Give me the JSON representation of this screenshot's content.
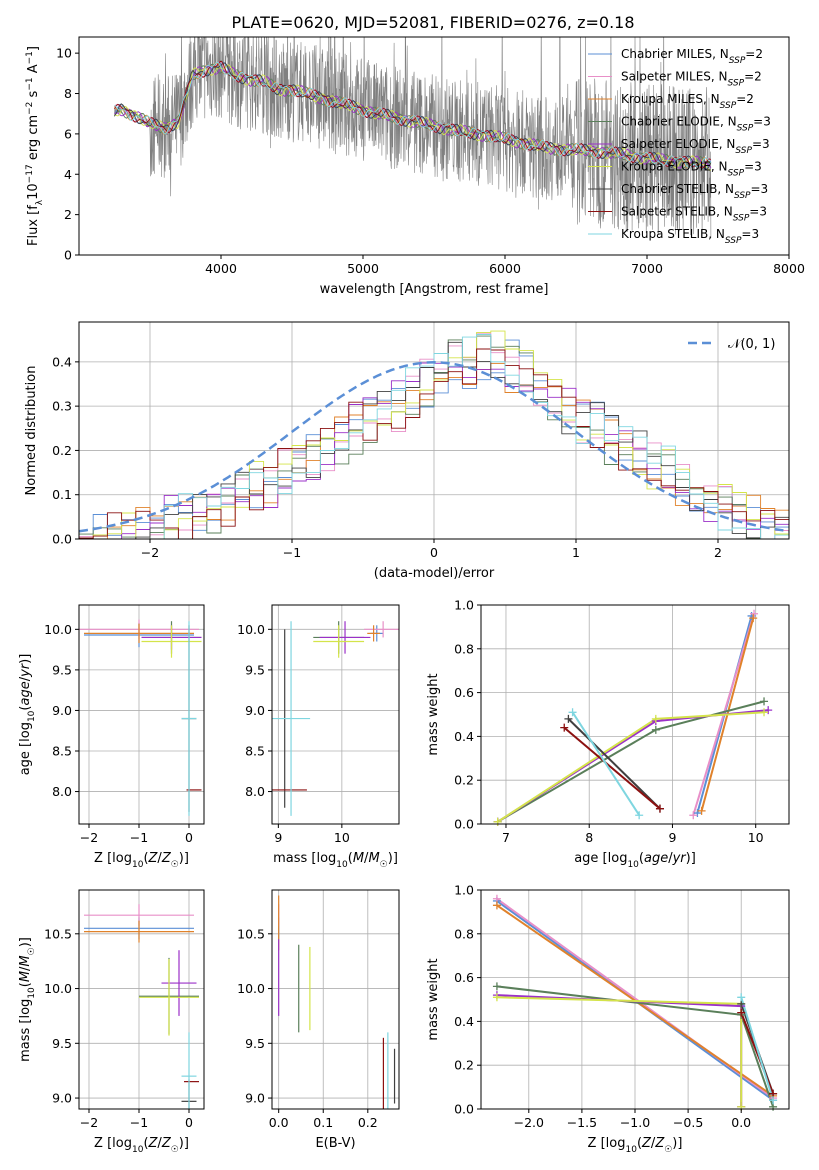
{
  "title": "PLATE=0620, MJD=52081, FIBERID=0276, z=0.18",
  "colors": {
    "Chabrier MILES": "#5b8fd6",
    "Salpeter MILES": "#e88fc8",
    "Kroupa MILES": "#e0822b",
    "Chabrier ELODIE": "#5a7f5a",
    "Salpeter ELODIE": "#9b30c8",
    "Kroupa ELODIE": "#d4e44a",
    "Chabrier STELIB": "#404040",
    "Salpeter STELIB": "#8b1010",
    "Kroupa STELIB": "#7fd6e0",
    "data": "#808080",
    "normal": "#5b8fd6"
  },
  "chart_data": [
    {
      "id": "spectrum",
      "type": "line",
      "title": "PLATE=0620, MJD=52081, FIBERID=0276, z=0.18",
      "xlabel": "wavelength [Angstrom, rest frame]",
      "ylabel": "Flux [fλ10⁻¹⁷ erg cm⁻² s⁻¹ A⁻¹]",
      "xlim": [
        3000,
        8000
      ],
      "ylim": [
        0,
        10.8
      ],
      "xticks": [
        4000,
        5000,
        6000,
        7000,
        8000
      ],
      "yticks": [
        0,
        2,
        4,
        6,
        8,
        10
      ],
      "grid": false,
      "legend_position": "top-right",
      "legend": [
        {
          "name": "Chabrier MILES",
          "sub": "SSP",
          "n": "2"
        },
        {
          "name": "Salpeter MILES",
          "sub": "SSP",
          "n": "2"
        },
        {
          "name": "Kroupa MILES",
          "sub": "SSP",
          "n": "2"
        },
        {
          "name": "Chabrier ELODIE",
          "sub": "SSP",
          "n": "3"
        },
        {
          "name": "Salpeter ELODIE",
          "sub": "SSP",
          "n": "3"
        },
        {
          "name": "Kroupa ELODIE",
          "sub": "SSP",
          "n": "3"
        },
        {
          "name": "Chabrier STELIB",
          "sub": "SSP",
          "n": "3"
        },
        {
          "name": "Salpeter STELIB",
          "sub": "SSP",
          "n": "3"
        },
        {
          "name": "Kroupa STELIB",
          "sub": "SSP",
          "n": "3"
        }
      ],
      "continuum": {
        "x": [
          3250,
          3300,
          3400,
          3500,
          3600,
          3700,
          3800,
          3900,
          4000,
          4100,
          4200,
          4300,
          4400,
          4500,
          4700,
          4900,
          5100,
          5300,
          5500,
          5700,
          5900,
          6100,
          6300,
          6500,
          6700,
          6900,
          7100,
          7300,
          7450
        ],
        "y": [
          7.1,
          7.2,
          6.9,
          6.5,
          6.3,
          6.6,
          8.9,
          9.2,
          9.3,
          8.9,
          8.7,
          8.6,
          8.2,
          8.2,
          7.8,
          7.4,
          7.0,
          6.7,
          6.4,
          6.1,
          5.9,
          5.6,
          5.3,
          5.2,
          5.1,
          4.9,
          4.7,
          4.6,
          4.5
        ]
      },
      "noisy_range": [
        3500,
        7500
      ]
    },
    {
      "id": "residuals",
      "type": "histogram",
      "xlabel": "(data-model)/error",
      "ylabel": "Normed distribution",
      "xlim": [
        -2.5,
        2.5
      ],
      "ylim": [
        0,
        0.49
      ],
      "xticks": [
        -2,
        -1,
        0,
        1,
        2
      ],
      "yticks": [
        0,
        0.1,
        0.2,
        0.3,
        0.4
      ],
      "grid": true,
      "legend_position": "top-right",
      "reference_curve": "𝒩(0, 1)",
      "bin_width": 0.1,
      "bin_start": -2.5,
      "values": [
        0.025,
        0.03,
        0.035,
        0.04,
        0.045,
        0.05,
        0.07,
        0.08,
        0.09,
        0.1,
        0.11,
        0.13,
        0.15,
        0.16,
        0.18,
        0.2,
        0.21,
        0.23,
        0.25,
        0.28,
        0.3,
        0.31,
        0.33,
        0.36,
        0.38,
        0.4,
        0.42,
        0.43,
        0.44,
        0.44,
        0.42,
        0.4,
        0.37,
        0.35,
        0.32,
        0.3,
        0.28,
        0.25,
        0.24,
        0.22,
        0.2,
        0.18,
        0.16,
        0.14,
        0.12,
        0.1,
        0.09,
        0.07,
        0.06,
        0.05
      ]
    },
    {
      "id": "z-age",
      "type": "errorbar",
      "xlabel": "Z [log10(Z/Z☉)]",
      "ylabel": "age  [log10(age/yr)]",
      "xlim": [
        -2.2,
        0.3
      ],
      "ylim": [
        7.6,
        10.3
      ],
      "xticks": [
        -2,
        -1,
        0
      ],
      "yticks": [
        8.0,
        8.5,
        9.0,
        9.5,
        10.0
      ],
      "grid": true,
      "points": [
        {
          "model": "Chabrier MILES",
          "x": -1.0,
          "xerr": 1.1,
          "y": 9.93,
          "yerr": 0.15
        },
        {
          "model": "Salpeter MILES",
          "x": -1.0,
          "xerr": 1.2,
          "y": 10.0,
          "yerr": 0.12
        },
        {
          "model": "Kroupa MILES",
          "x": -1.0,
          "xerr": 1.1,
          "y": 9.95,
          "yerr": 0.12
        },
        {
          "model": "Chabrier ELODIE",
          "x": -0.35,
          "xerr": 0.6,
          "y": 9.9,
          "yerr": 0.2
        },
        {
          "model": "Salpeter ELODIE",
          "x": -0.35,
          "xerr": 0.6,
          "y": 9.9,
          "yerr": 0.15
        },
        {
          "model": "Kroupa ELODIE",
          "x": -0.35,
          "xerr": 0.6,
          "y": 9.85,
          "yerr": 0.2
        },
        {
          "model": "Chabrier STELIB",
          "x": 0.0,
          "xerr": 0.15,
          "y": 8.9,
          "yerr": 1.15
        },
        {
          "model": "Salpeter STELIB",
          "x": 0.1,
          "xerr": 0.15,
          "y": 8.02,
          "yerr": 0.0
        },
        {
          "model": "Kroupa STELIB",
          "x": 0.0,
          "xerr": 0.15,
          "y": 8.9,
          "yerr": 1.2
        }
      ]
    },
    {
      "id": "mass-age",
      "type": "errorbar",
      "xlabel": "mass [log10(M/M☉)]",
      "ylabel": "",
      "xlim": [
        8.9,
        10.9
      ],
      "ylim": [
        7.6,
        10.3
      ],
      "xticks": [
        9,
        10
      ],
      "yticks": [
        8.0,
        8.5,
        9.0,
        9.5,
        10.0
      ],
      "grid": true,
      "points": [
        {
          "model": "Chabrier MILES",
          "x": 10.55,
          "xerr": 0.1,
          "y": 9.95,
          "yerr": 0.1
        },
        {
          "model": "Salpeter MILES",
          "x": 10.65,
          "xerr": 0.3,
          "y": 10.0,
          "yerr": 0.1
        },
        {
          "model": "Kroupa MILES",
          "x": 10.5,
          "xerr": 0.1,
          "y": 9.95,
          "yerr": 0.1
        },
        {
          "model": "Chabrier ELODIE",
          "x": 9.95,
          "xerr": 0.4,
          "y": 9.9,
          "yerr": 0.2
        },
        {
          "model": "Salpeter ELODIE",
          "x": 10.05,
          "xerr": 0.4,
          "y": 9.9,
          "yerr": 0.2
        },
        {
          "model": "Kroupa ELODIE",
          "x": 9.95,
          "xerr": 0.4,
          "y": 9.85,
          "yerr": 0.2
        },
        {
          "model": "Chabrier STELIB",
          "x": 9.1,
          "xerr": 0.0,
          "y": 8.9,
          "yerr": 1.1
        },
        {
          "model": "Salpeter STELIB",
          "x": 9.15,
          "xerr": 0.3,
          "y": 8.02,
          "yerr": 0.0
        },
        {
          "model": "Kroupa STELIB",
          "x": 9.2,
          "xerr": 0.3,
          "y": 8.9,
          "yerr": 1.2
        }
      ]
    },
    {
      "id": "age-weight",
      "type": "line",
      "xlabel": "age  [log10(age/yr)]",
      "ylabel": "mass weight",
      "xlim": [
        6.7,
        10.4
      ],
      "ylim": [
        0,
        1.0
      ],
      "xticks": [
        7,
        8,
        9,
        10
      ],
      "yticks": [
        0.0,
        0.2,
        0.4,
        0.6,
        0.8,
        1.0
      ],
      "grid": true,
      "series": [
        {
          "model": "Chabrier MILES",
          "x": [
            9.3,
            9.95
          ],
          "y": [
            0.05,
            0.95
          ]
        },
        {
          "model": "Salpeter MILES",
          "x": [
            9.25,
            9.98
          ],
          "y": [
            0.04,
            0.96
          ]
        },
        {
          "model": "Kroupa MILES",
          "x": [
            9.35,
            9.97
          ],
          "y": [
            0.06,
            0.94
          ]
        },
        {
          "model": "Chabrier ELODIE",
          "x": [
            6.9,
            8.8,
            10.1
          ],
          "y": [
            0.01,
            0.43,
            0.56
          ]
        },
        {
          "model": "Salpeter ELODIE",
          "x": [
            6.9,
            8.8,
            10.15
          ],
          "y": [
            0.01,
            0.47,
            0.52
          ]
        },
        {
          "model": "Kroupa ELODIE",
          "x": [
            6.9,
            8.8,
            10.1
          ],
          "y": [
            0.01,
            0.48,
            0.51
          ]
        },
        {
          "model": "Chabrier STELIB",
          "x": [
            7.75,
            8.85
          ],
          "y": [
            0.48,
            0.07
          ]
        },
        {
          "model": "Salpeter STELIB",
          "x": [
            7.7,
            8.85
          ],
          "y": [
            0.44,
            0.07
          ]
        },
        {
          "model": "Kroupa STELIB",
          "x": [
            7.8,
            8.6
          ],
          "y": [
            0.51,
            0.04
          ]
        }
      ]
    },
    {
      "id": "z-mass",
      "type": "errorbar",
      "xlabel": "Z [log10(Z/Z☉)]",
      "ylabel": "mass [log10(M/M☉)]",
      "xlim": [
        -2.2,
        0.3
      ],
      "ylim": [
        8.9,
        10.9
      ],
      "xticks": [
        -2,
        -1,
        0
      ],
      "yticks": [
        9.0,
        9.5,
        10.0,
        10.5
      ],
      "grid": true,
      "points": [
        {
          "model": "Chabrier MILES",
          "x": -1.0,
          "xerr": 1.1,
          "y": 10.55,
          "yerr": 0.1
        },
        {
          "model": "Salpeter MILES",
          "x": -1.0,
          "xerr": 1.1,
          "y": 10.67,
          "yerr": 0.1
        },
        {
          "model": "Kroupa MILES",
          "x": -1.0,
          "xerr": 1.1,
          "y": 10.52,
          "yerr": 0.1
        },
        {
          "model": "Chabrier ELODIE",
          "x": -0.4,
          "xerr": 0.6,
          "y": 9.93,
          "yerr": 0.35
        },
        {
          "model": "Salpeter ELODIE",
          "x": -0.2,
          "xerr": 0.35,
          "y": 10.05,
          "yerr": 0.3
        },
        {
          "model": "Kroupa ELODIE",
          "x": -0.4,
          "xerr": 0.6,
          "y": 9.92,
          "yerr": 0.35
        },
        {
          "model": "Chabrier STELIB",
          "x": 0.0,
          "xerr": 0.15,
          "y": 8.97,
          "yerr": 0.2
        },
        {
          "model": "Salpeter STELIB",
          "x": 0.05,
          "xerr": 0.15,
          "y": 9.15,
          "yerr": 0.0
        },
        {
          "model": "Kroupa STELIB",
          "x": 0.0,
          "xerr": 0.15,
          "y": 9.2,
          "yerr": 0.4
        }
      ]
    },
    {
      "id": "ebv-mass",
      "type": "errorbar",
      "xlabel": "E(B-V)",
      "ylabel": "",
      "xlim": [
        -0.015,
        0.27
      ],
      "ylim": [
        8.9,
        10.9
      ],
      "xticks": [
        0.0,
        0.1,
        0.2
      ],
      "xticklabels": [
        "0.0",
        "0.1",
        "0.2"
      ],
      "yticks": [
        9.0,
        9.5,
        10.0,
        10.5
      ],
      "grid": true,
      "points": [
        {
          "model": "Chabrier MILES",
          "x": 0.0,
          "xerr": 0,
          "y": 10.55,
          "yerr": 0.1
        },
        {
          "model": "Salpeter MILES",
          "x": 0.0,
          "xerr": 0,
          "y": 10.67,
          "yerr": 0.1
        },
        {
          "model": "Kroupa MILES",
          "x": 0.0,
          "xerr": 0,
          "y": 10.6,
          "yerr": 0.25
        },
        {
          "model": "Chabrier ELODIE",
          "x": 0.045,
          "xerr": 0,
          "y": 10.0,
          "yerr": 0.4
        },
        {
          "model": "Salpeter ELODIE",
          "x": 0.0,
          "xerr": 0,
          "y": 10.1,
          "yerr": 0.35
        },
        {
          "model": "Kroupa ELODIE",
          "x": 0.07,
          "xerr": 0,
          "y": 10.0,
          "yerr": 0.38
        },
        {
          "model": "Chabrier STELIB",
          "x": 0.26,
          "xerr": 0,
          "y": 9.2,
          "yerr": 0.25
        },
        {
          "model": "Salpeter STELIB",
          "x": 0.235,
          "xerr": 0,
          "y": 9.2,
          "yerr": 0.35
        },
        {
          "model": "Kroupa STELIB",
          "x": 0.245,
          "xerr": 0,
          "y": 9.2,
          "yerr": 0.4
        }
      ]
    },
    {
      "id": "z-weight",
      "type": "line",
      "xlabel": "Z [log10(Z/Z☉)]",
      "ylabel": "mass weight",
      "xlim": [
        -2.45,
        0.45
      ],
      "ylim": [
        0,
        1.0
      ],
      "xticks": [
        -2.0,
        -1.5,
        -1.0,
        -0.5,
        0.0
      ],
      "xticklabels": [
        "−2.0",
        "−1.5",
        "−1.0",
        "−0.5",
        "0.0"
      ],
      "yticks": [
        0.0,
        0.2,
        0.4,
        0.6,
        0.8,
        1.0
      ],
      "grid": true,
      "series": [
        {
          "model": "Chabrier MILES",
          "x": [
            -2.3,
            0.3
          ],
          "y": [
            0.95,
            0.04
          ]
        },
        {
          "model": "Salpeter MILES",
          "x": [
            -2.3,
            0.3
          ],
          "y": [
            0.96,
            0.05
          ]
        },
        {
          "model": "Kroupa MILES",
          "x": [
            -2.3,
            0.3
          ],
          "y": [
            0.93,
            0.06
          ]
        },
        {
          "model": "Chabrier ELODIE",
          "x": [
            -2.3,
            0.0,
            0.3
          ],
          "y": [
            0.56,
            0.43,
            0.01
          ]
        },
        {
          "model": "Salpeter ELODIE",
          "x": [
            -2.3,
            0.0,
            0.0
          ],
          "y": [
            0.52,
            0.47,
            0.01
          ]
        },
        {
          "model": "Kroupa ELODIE",
          "x": [
            -2.3,
            0.0,
            0.0
          ],
          "y": [
            0.51,
            0.48,
            0.01
          ]
        },
        {
          "model": "Chabrier STELIB",
          "x": [
            0.0,
            0.3
          ],
          "y": [
            0.48,
            0.07
          ]
        },
        {
          "model": "Salpeter STELIB",
          "x": [
            0.0,
            0.3
          ],
          "y": [
            0.44,
            0.07
          ]
        },
        {
          "model": "Kroupa STELIB",
          "x": [
            0.0,
            0.3
          ],
          "y": [
            0.51,
            0.04
          ]
        }
      ]
    }
  ]
}
